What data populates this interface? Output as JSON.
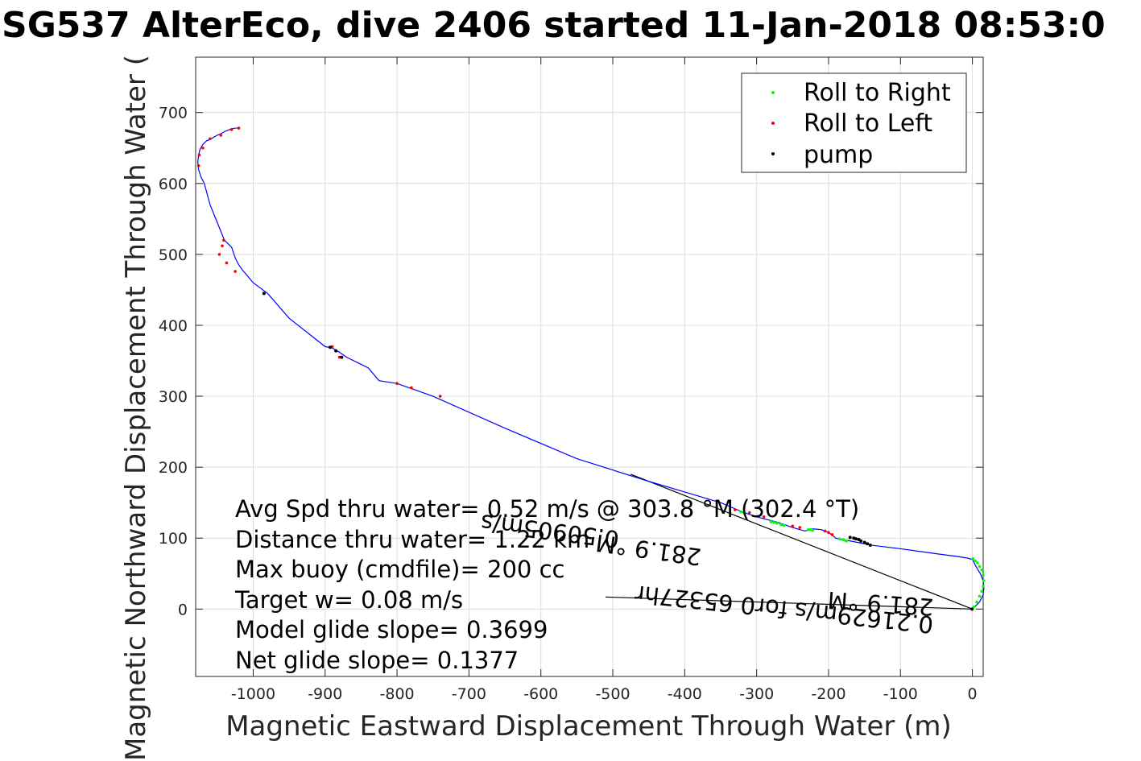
{
  "chart_data": {
    "type": "line",
    "title": "SG537 AlterEco, dive 2406 started 11-Jan-2018 08:53:0",
    "xlabel": "Magnetic Eastward Displacement Through Water (m)",
    "ylabel": "Magnetic Northward Displacement Through Water (",
    "xlim": [
      -1080,
      15
    ],
    "ylim": [
      -95,
      778
    ],
    "xticks": [
      -1000,
      -900,
      -800,
      -700,
      -600,
      -500,
      -400,
      -300,
      -200,
      -100,
      0
    ],
    "yticks": [
      0,
      100,
      200,
      300,
      400,
      500,
      600,
      700
    ],
    "grid": true,
    "legend": {
      "placement": "top-right",
      "entries": [
        {
          "label": "Roll to Right",
          "color": "#00ff00"
        },
        {
          "label": "Roll to Left",
          "color": "#ff0000"
        },
        {
          "label": "pump",
          "color": "#000000"
        }
      ]
    },
    "track": {
      "color": "#0000ff",
      "x": [
        0,
        10,
        15,
        16,
        15,
        11,
        5,
        0,
        -8,
        -20,
        -50,
        -100,
        -140,
        -155,
        -165,
        -175,
        -182,
        -190,
        -200,
        -210,
        -222,
        -233,
        -250,
        -270,
        -300,
        -320,
        -350,
        -400,
        -450,
        -550,
        -650,
        -750,
        -800,
        -825,
        -840,
        -850,
        -870,
        -880,
        -890,
        -900,
        -950,
        -980,
        -1000,
        -1010,
        -1015,
        -1020,
        -1025,
        -1030,
        -1040,
        -1050,
        -1060,
        -1068,
        -1073,
        -1076,
        -1077,
        -1076,
        -1074,
        -1070,
        -1065,
        -1060,
        -1055,
        -1050,
        -1045,
        -1040,
        -1035,
        -1030,
        -1025,
        -1020
      ],
      "y": [
        0,
        10,
        20,
        30,
        40,
        50,
        60,
        70,
        72,
        74,
        78,
        85,
        90,
        93,
        95,
        97,
        98,
        100,
        108,
        112,
        113,
        110,
        115,
        122,
        130,
        137,
        150,
        165,
        180,
        212,
        255,
        300,
        318,
        322,
        340,
        345,
        355,
        362,
        368,
        370,
        410,
        445,
        460,
        472,
        478,
        485,
        495,
        510,
        520,
        545,
        570,
        600,
        610,
        620,
        630,
        640,
        648,
        655,
        660,
        662,
        665,
        668,
        670,
        673,
        675,
        677,
        678,
        678
      ]
    },
    "roll_right_points": {
      "color": "#00ff00",
      "x": [
        2,
        6,
        10,
        13,
        15,
        16,
        15,
        13,
        10,
        7,
        4,
        1,
        -175,
        -178,
        -180,
        -185,
        -222,
        -225,
        -228,
        -262,
        -266,
        -272,
        -276,
        -280,
        -318,
        -322
      ],
      "y": [
        3,
        10,
        18,
        25,
        32,
        40,
        48,
        55,
        60,
        65,
        68,
        71,
        96,
        97,
        98,
        99,
        111,
        112,
        112,
        118,
        119,
        121,
        122,
        123,
        136,
        137
      ]
    },
    "roll_left_points": {
      "color": "#ff0000",
      "x": [
        -1020,
        -1030,
        -1045,
        -1060,
        -1070,
        -1075,
        -1076,
        -1041,
        -1043,
        -1047,
        -1037,
        -1025,
        -985,
        -890,
        -880,
        -800,
        -780,
        -740,
        -330,
        -310,
        -290,
        -250,
        -240,
        -205,
        -200,
        -195
      ],
      "y": [
        678,
        676,
        668,
        663,
        650,
        640,
        625,
        520,
        512,
        500,
        488,
        476,
        445,
        370,
        355,
        318,
        312,
        300,
        140,
        136,
        130,
        117,
        115,
        110,
        108,
        105
      ]
    },
    "pump_points": {
      "color": "#000000",
      "x": [
        -985,
        -893,
        -885,
        -877,
        -170,
        -165,
        -162,
        -158,
        -155,
        -150,
        -146,
        -142,
        -0.5
      ],
      "y": [
        445,
        369,
        364,
        355,
        101,
        100,
        99,
        98,
        96,
        94,
        92,
        90,
        0
      ]
    },
    "annotations": {
      "stats": [
        "Avg Spd thru water=  0.52 m/s @ 303.8 °M (302.4 °T)",
        "Distance thru water=  1.22 km",
        "Max buoy (cmdfile)= 200 cc",
        "Target w= 0.08 m/s",
        "Model glide slope= 0.3699",
        "Net glide slope= 0.1377"
      ],
      "current_label_1": "0.21629m/s for0 65327hr",
      "current_label_2": "281.9 °M",
      "current_label_3": "0.50905m/s",
      "current_label_4": "281.9 °M",
      "vector_1": {
        "from": [
          0,
          0
        ],
        "to": [
          -475,
          190
        ]
      },
      "vector_2": {
        "from": [
          0,
          0
        ],
        "to": [
          -510,
          17
        ]
      }
    }
  }
}
